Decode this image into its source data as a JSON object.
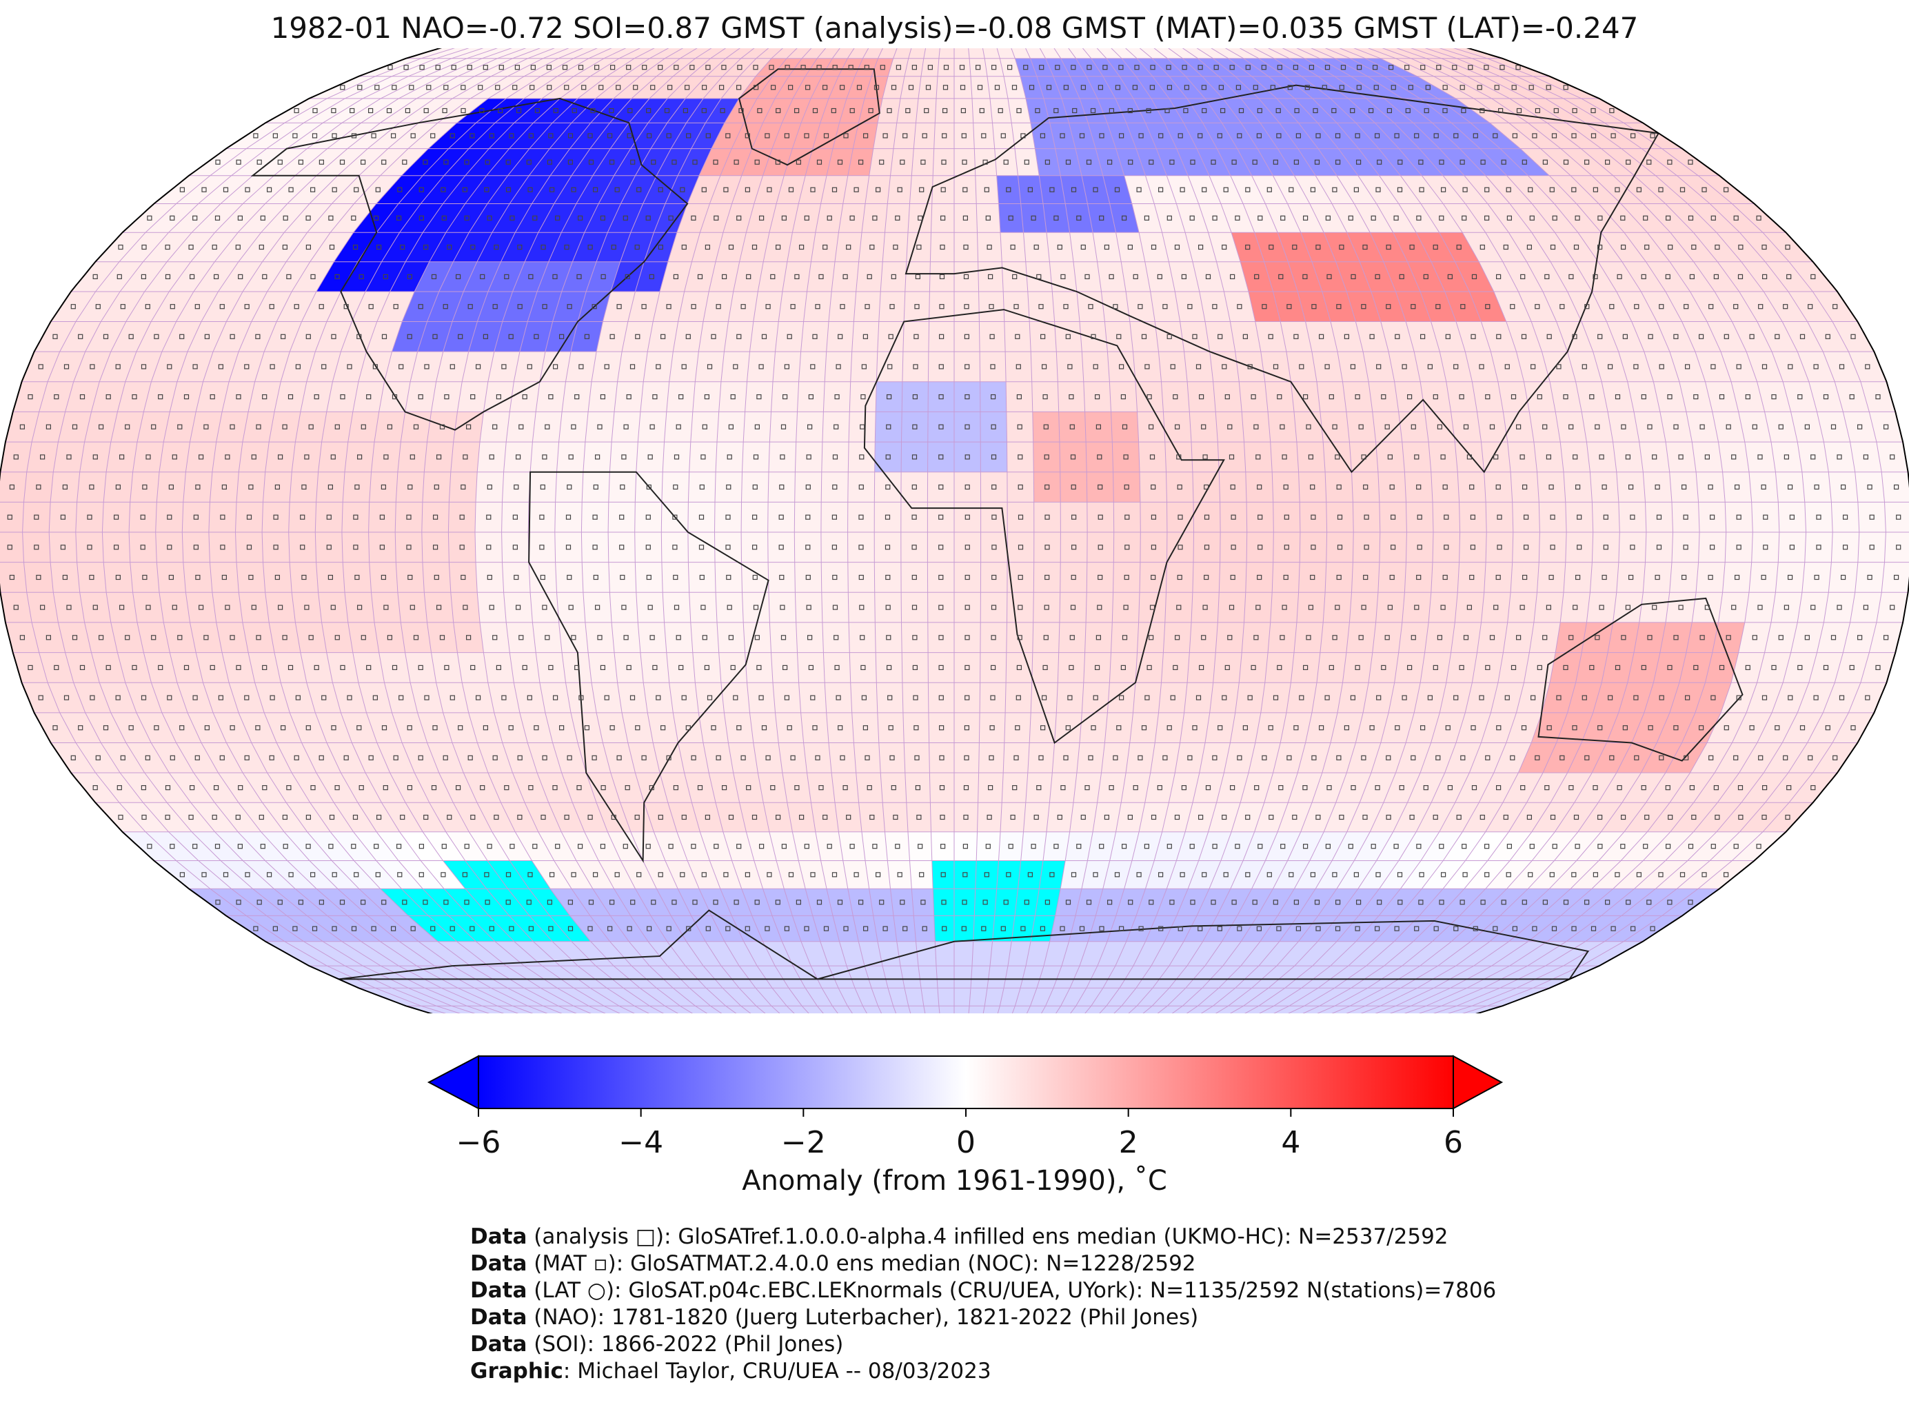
{
  "title": "1982-01 NAO=-0.72 SOI=0.87 GMST (analysis)=-0.08 GMST (MAT)=0.035 GMST (LAT)=-0.247",
  "colorbar": {
    "label": "Anomaly (from 1961-1990), ˚C",
    "ticks": [
      "−6",
      "−4",
      "−2",
      "0",
      "2",
      "4",
      "6"
    ],
    "tick_values": [
      -6,
      -4,
      -2,
      0,
      2,
      4,
      6
    ],
    "range": [
      -6,
      6
    ],
    "colormap": [
      "#0000ff",
      "#ffffff",
      "#ff0000"
    ]
  },
  "credits": [
    {
      "bold": "Data",
      "text": " (analysis □): GloSATref.1.0.0.0-alpha.4 infilled ens median (UKMO-HC): N=2537/2592"
    },
    {
      "bold": "Data",
      "text": " (MAT ▫): GloSATMAT.2.4.0.0 ens median (NOC): N=1228/2592"
    },
    {
      "bold": "Data",
      "text": " (LAT ○): GloSAT.p04c.EBC.LEKnormals (CRU/UEA, UYork): N=1135/2592 N(stations)=7806"
    },
    {
      "bold": "Data",
      "text": " (NAO): 1781-1820 (Juerg Luterbacher), 1821-2022 (Phil Jones)"
    },
    {
      "bold": "Data",
      "text": " (SOI): 1866-2022 (Phil Jones)"
    },
    {
      "bold": "Graphic",
      "text": ": Michael Taylor, CRU/UEA -- 08/03/2023"
    }
  ],
  "map": {
    "projection": "Robinson",
    "missing_color": "#00ffff",
    "grid_color": "#c79bd4"
  }
}
